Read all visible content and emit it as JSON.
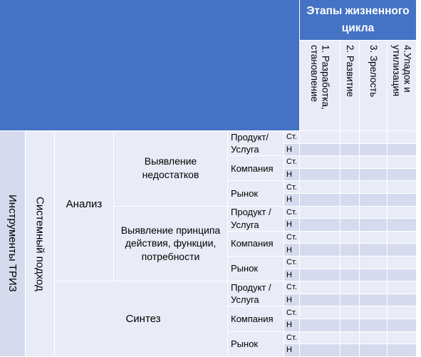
{
  "header": {
    "title": "Этапы жизненного цикла",
    "stages": [
      "1. Разработка, становление",
      "2. Развитие",
      "3. Зрелость",
      "4.Упадок и утилизация"
    ]
  },
  "levels": {
    "tools": "Инструменты ТРИЗ",
    "approach": "Системный подход",
    "analysis": "Анализ",
    "synthesis": "Синтез"
  },
  "groups": [
    {
      "label": "Выявление недостатков",
      "rows": [
        {
          "label": "Продукт/ Услуга",
          "codes": [
            "Ст.",
            "Н"
          ]
        },
        {
          "label": "Компания",
          "codes": [
            "Ст.",
            "Н"
          ]
        },
        {
          "label": "Рынок",
          "codes": [
            "Ст.",
            "Н"
          ]
        }
      ]
    },
    {
      "label": "Выявление принципа действия, функции, потребности",
      "rows": [
        {
          "label": "Продукт / Услуга",
          "codes": [
            "Ст.",
            "Н"
          ]
        },
        {
          "label": "Компания",
          "codes": [
            "Ст.",
            "Н"
          ]
        },
        {
          "label": "Рынок",
          "codes": [
            "Ст.",
            "Н"
          ]
        }
      ]
    },
    {
      "label": "",
      "rows": [
        {
          "label": "Продукт / Услуга",
          "codes": [
            "Ст.",
            "Н"
          ]
        },
        {
          "label": "Компания",
          "codes": [
            "Ст.",
            "Н"
          ]
        },
        {
          "label": "Рынок",
          "codes": [
            "Ст.",
            "Н"
          ]
        }
      ]
    }
  ],
  "colors": {
    "header_blue": "#4472c4",
    "light_cell": "#e9ecf6",
    "darker_cell": "#d5daee"
  }
}
